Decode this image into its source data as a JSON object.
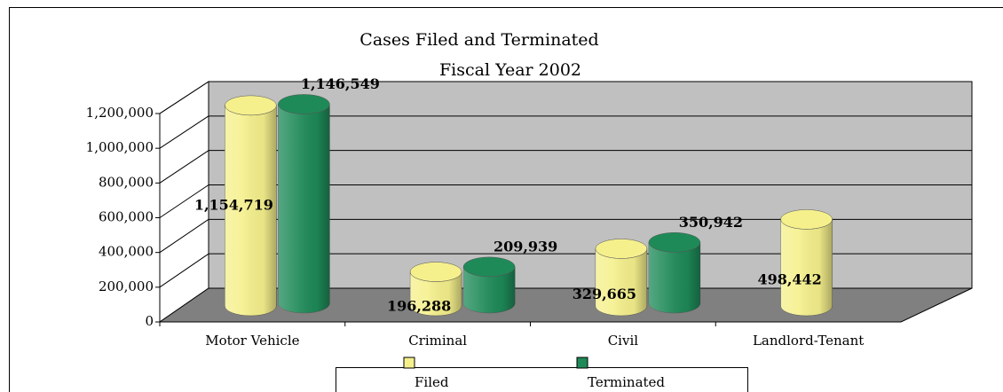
{
  "chart_data": {
    "type": "bar",
    "title": "Cases Filed and Terminated",
    "subtitle": "Fiscal Year 2002",
    "categories": [
      "Motor Vehicle",
      "Criminal",
      "Civil",
      "Landlord-Tenant"
    ],
    "series": [
      {
        "name": "Filed",
        "color": "#f5f08c",
        "values": [
          1154719,
          196288,
          329665,
          498442
        ],
        "value_labels": [
          "1,154,719",
          "196,288",
          "329,665",
          "498,442"
        ]
      },
      {
        "name": "Terminated",
        "color": "#1e8a58",
        "values": [
          1146549,
          209939,
          350942,
          null
        ],
        "value_labels": [
          "1,146,549",
          "209,939",
          "350,942",
          null
        ]
      }
    ],
    "ylim": [
      0,
      1200000
    ],
    "yticks": [
      0,
      {
        "value": 200000,
        "label": "200,000"
      },
      {
        "value": 400000,
        "label": "400,000"
      },
      {
        "value": 600000,
        "label": "600,000"
      },
      {
        "value": 800000,
        "label": "800,000"
      },
      {
        "value": 1000000,
        "label": "1,000,000"
      },
      {
        "value": 1200000,
        "label": "1,200,000"
      }
    ],
    "grid": true,
    "legend": "bottom"
  }
}
